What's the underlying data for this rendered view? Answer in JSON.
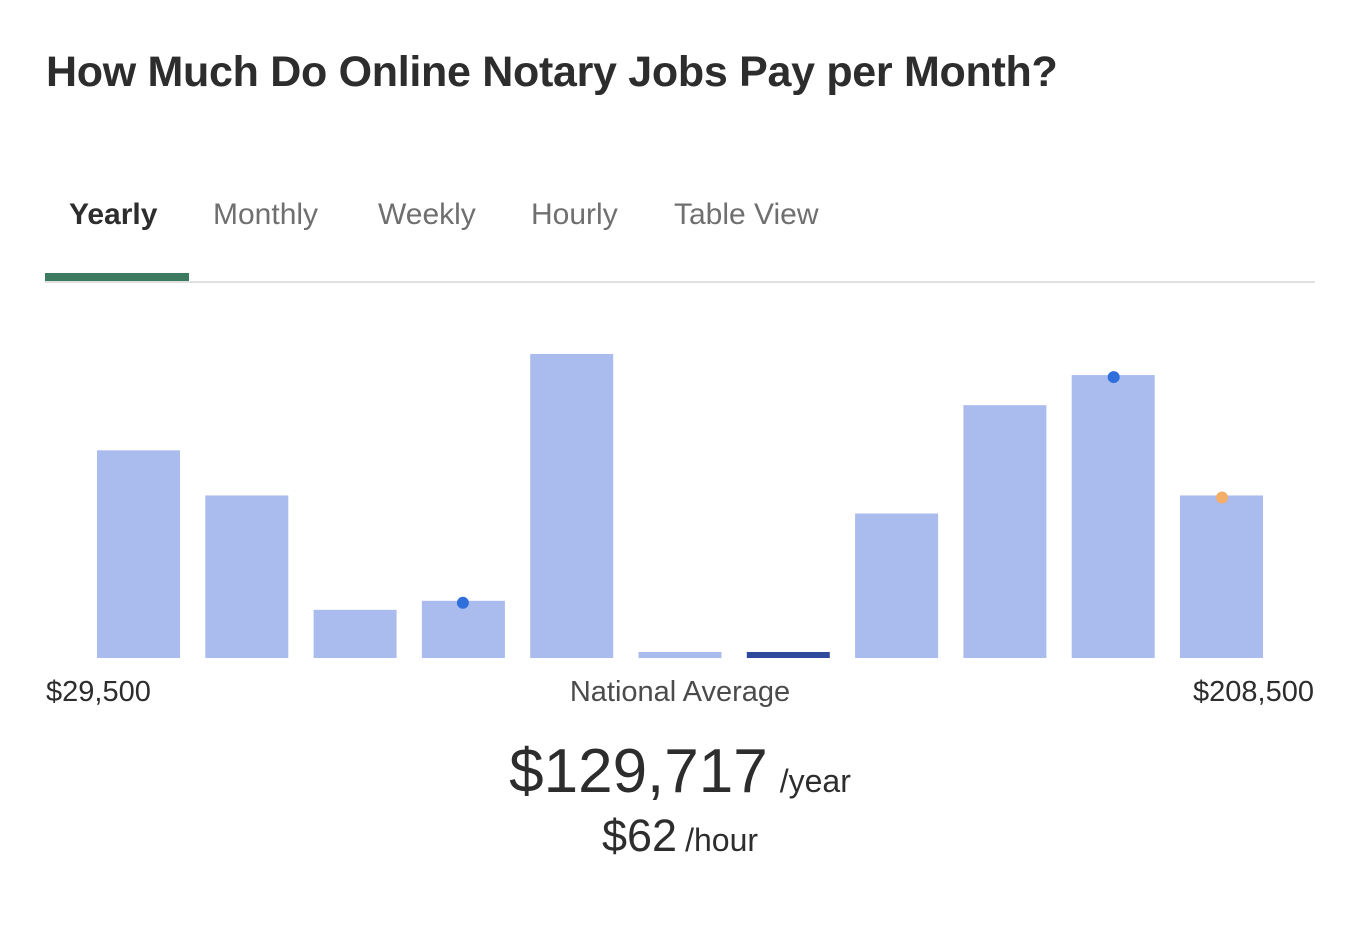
{
  "title": "How Much Do Online Notary Jobs Pay per Month?",
  "tabs": [
    {
      "label": "Yearly",
      "active": true
    },
    {
      "label": "Monthly",
      "active": false
    },
    {
      "label": "Weekly",
      "active": false
    },
    {
      "label": "Hourly",
      "active": false
    },
    {
      "label": "Table View",
      "active": false
    }
  ],
  "colors": {
    "bar": "#aabbed",
    "bar_highlight": "#2f4a9c",
    "tab_underline": "#3d7a60",
    "marker_blue": "#2f6fdc",
    "marker_orange": "#f5ad6a"
  },
  "chart_data": {
    "type": "bar",
    "title": "",
    "xlabel": "",
    "ylabel": "",
    "x_range_labels": [
      "$29,500",
      "$208,500"
    ],
    "categories": [
      "1",
      "2",
      "3",
      "4",
      "5",
      "6",
      "7",
      "8",
      "9",
      "10",
      "11"
    ],
    "values": [
      69,
      54,
      16,
      19,
      101,
      2,
      2,
      48,
      84,
      94,
      54
    ],
    "ylim": [
      0,
      101
    ],
    "highlighted_index": 6,
    "markers": [
      {
        "bar_index": 3,
        "color": "blue"
      },
      {
        "bar_index": 9,
        "color": "blue"
      },
      {
        "bar_index": 10,
        "color": "orange"
      }
    ],
    "grid": false,
    "legend": "none"
  },
  "labels": {
    "min": "$29,500",
    "max": "$208,500",
    "average_caption": "National Average"
  },
  "salary": {
    "yearly_value": "$129,717",
    "yearly_unit": "/year",
    "hourly_value": "$62",
    "hourly_unit": "/hour"
  }
}
